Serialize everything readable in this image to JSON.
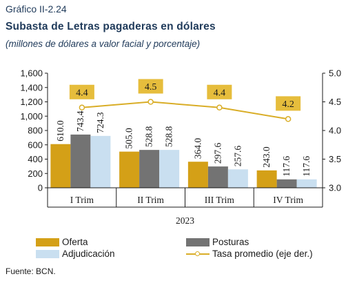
{
  "figure_label": "Gráfico II-2.24",
  "title": "Subasta de Letras pagaderas en dólares",
  "subtitle": "(millones de dólares a valor facial y porcentaje)",
  "source": "Fuente: BCN.",
  "colors": {
    "oferta": "#d4a017",
    "posturas": "#737373",
    "adjudicacion": "#c9dff0",
    "tasa": "#d9ad26",
    "label_box": "#e6bd3c",
    "axis": "#1a1a1a"
  },
  "chart_data": {
    "type": "bar",
    "categories": [
      "I Trim",
      "II Trim",
      "III Trim",
      "IV Trim"
    ],
    "group_label": "2023",
    "series": [
      {
        "name": "Oferta",
        "key": "oferta",
        "values": [
          610.0,
          505.0,
          364.0,
          243.0
        ],
        "labels": [
          "610.0",
          "505.0",
          "364.0",
          "243.0"
        ]
      },
      {
        "name": "Posturas",
        "key": "posturas",
        "values": [
          743.4,
          528.8,
          297.6,
          117.6
        ],
        "labels": [
          "743.4",
          "528.8",
          "297.6",
          "117.6"
        ]
      },
      {
        "name": "Adjudicación",
        "key": "adjudicacion",
        "values": [
          724.3,
          528.8,
          257.6,
          117.6
        ],
        "labels": [
          "724.3",
          "528.8",
          "257.6",
          "117.6"
        ]
      }
    ],
    "line_series": {
      "name": "Tasa promedio (eje der.)",
      "values": [
        4.4,
        4.5,
        4.4,
        4.2
      ],
      "labels": [
        "4.4",
        "4.5",
        "4.4",
        "4.2"
      ],
      "axis": "right"
    },
    "ylim": [
      0,
      1600
    ],
    "yticks": [
      "0",
      "200",
      "400",
      "600",
      "800",
      "1,000",
      "1,200",
      "1,400",
      "1,600"
    ],
    "ytick_values": [
      0,
      200,
      400,
      600,
      800,
      1000,
      1200,
      1400,
      1600
    ],
    "y2lim": [
      3.0,
      5.0
    ],
    "y2ticks": [
      "3.0",
      "3.5",
      "4.0",
      "4.5",
      "5.0"
    ],
    "y2tick_values": [
      3.0,
      3.5,
      4.0,
      4.5,
      5.0
    ],
    "grid": false,
    "legend_position": "bottom"
  },
  "legend": [
    {
      "label": "Oferta",
      "kind": "bar",
      "key": "oferta"
    },
    {
      "label": "Posturas",
      "kind": "bar",
      "key": "posturas"
    },
    {
      "label": "Adjudicación",
      "kind": "bar",
      "key": "adjudicacion"
    },
    {
      "label": "Tasa promedio (eje der.)",
      "kind": "line",
      "key": "tasa"
    }
  ]
}
